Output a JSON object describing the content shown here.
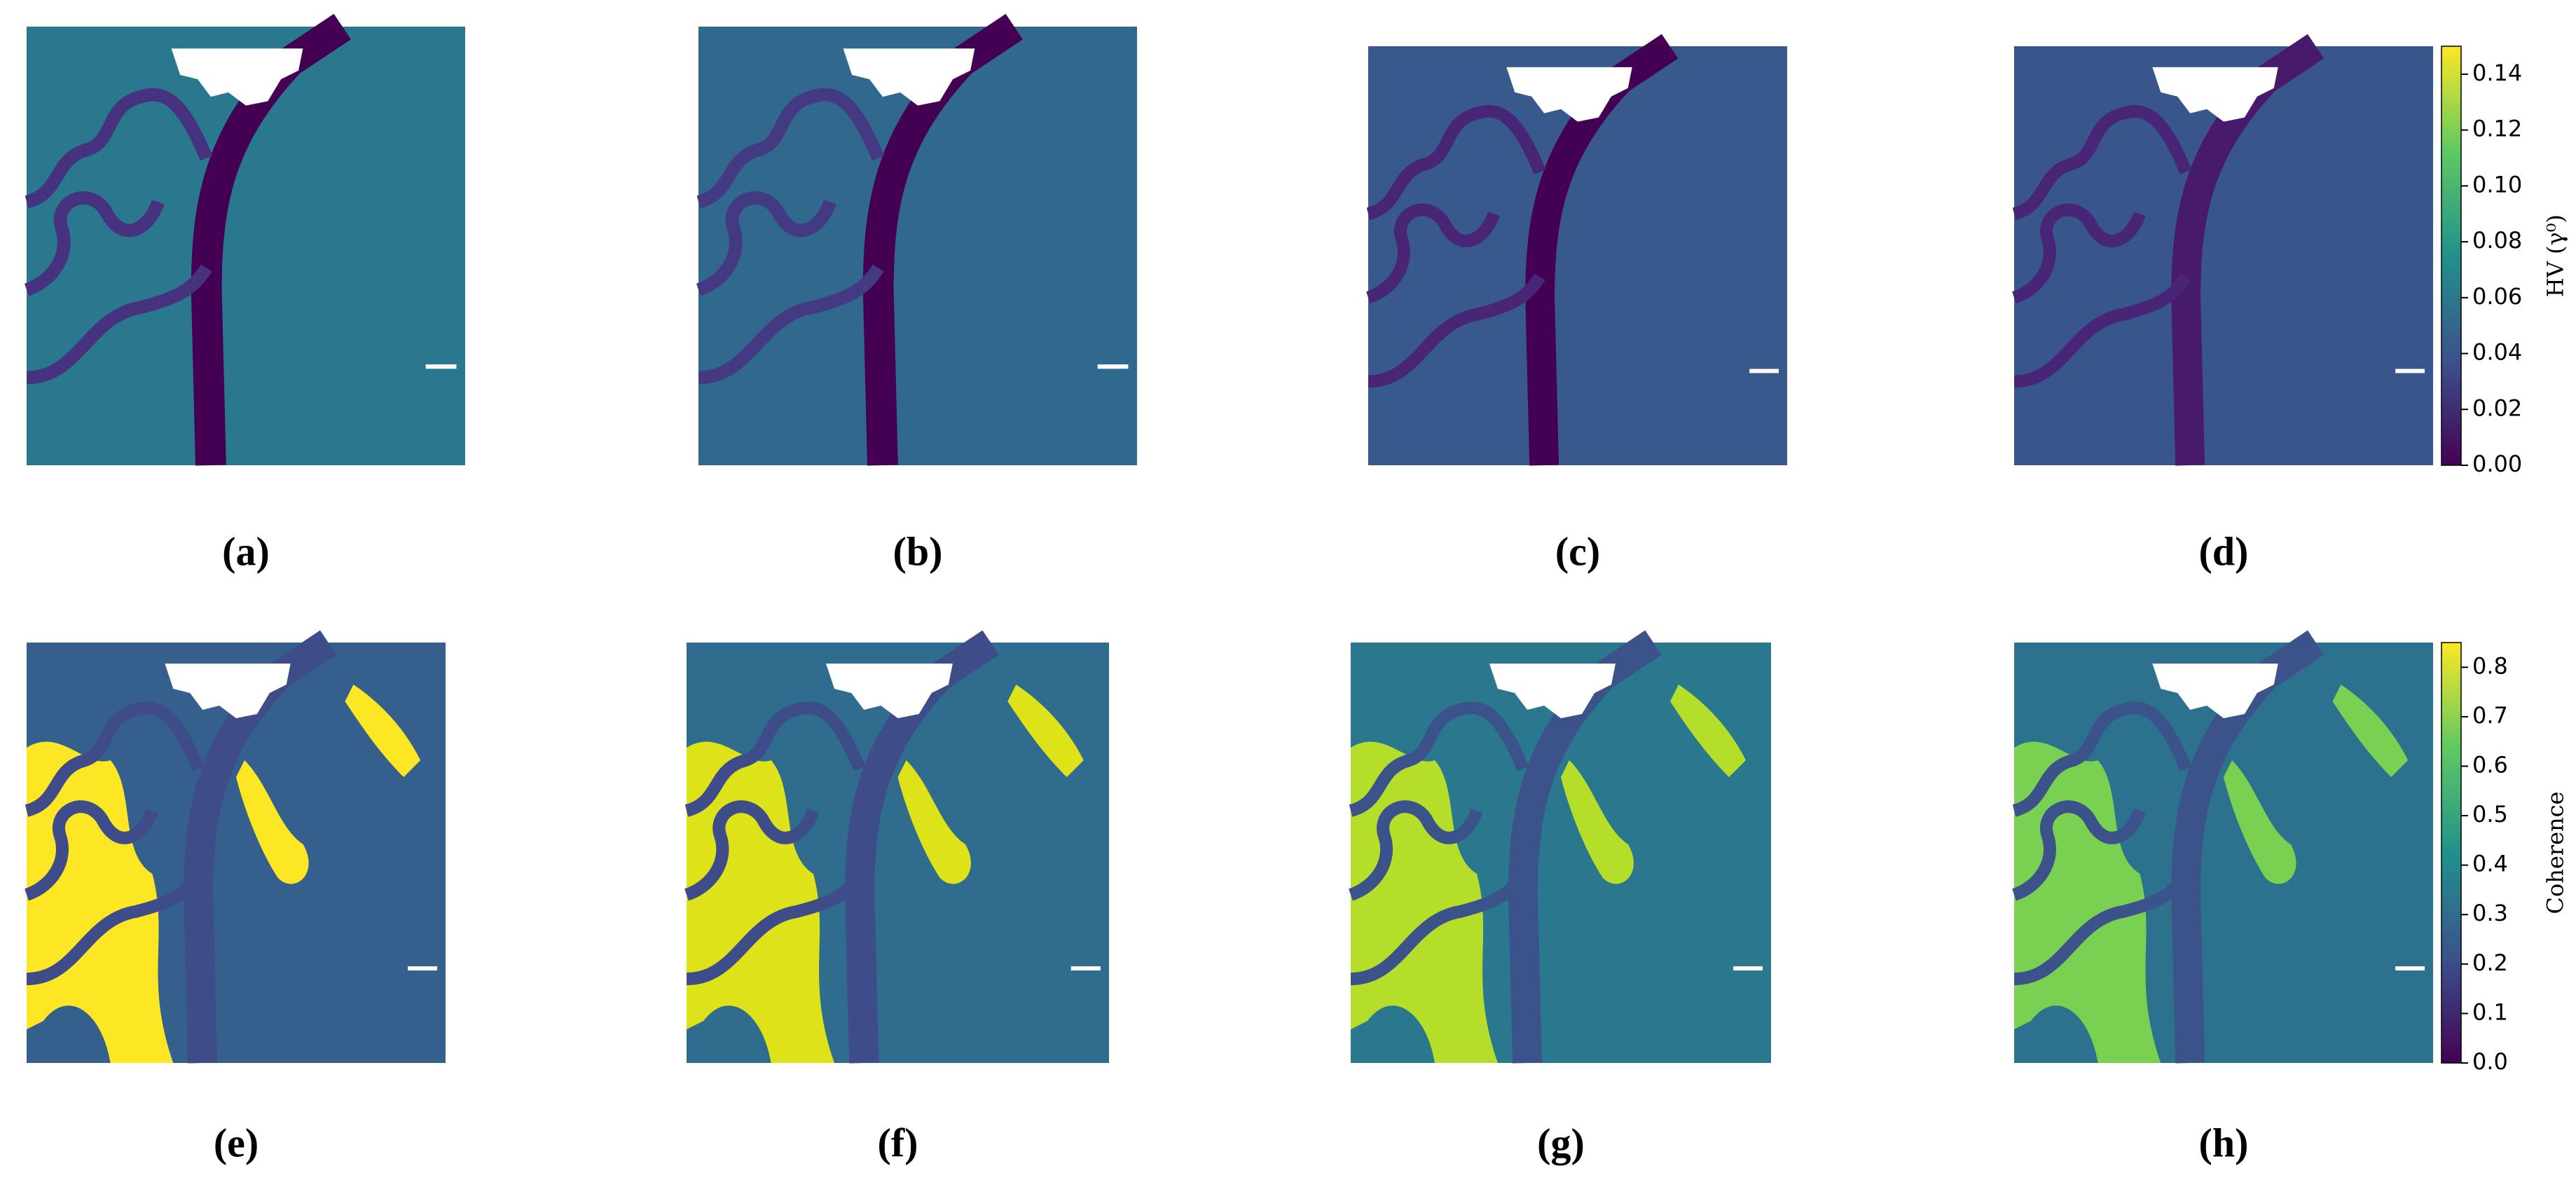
{
  "panels": [
    {
      "label": "(a)"
    },
    {
      "label": "(b)"
    },
    {
      "label": "(c)"
    },
    {
      "label": "(d)"
    },
    {
      "label": "(e)"
    },
    {
      "label": "(f)"
    },
    {
      "label": "(g)"
    },
    {
      "label": "(h)"
    }
  ],
  "colorbars": [
    {
      "label": "HV (γ⁰)",
      "lim": [
        0,
        0.15
      ],
      "ticks": [
        {
          "value": 0,
          "label": "0.00"
        },
        {
          "value": 0.02,
          "label": "0.02"
        },
        {
          "value": 0.04,
          "label": "0.04"
        },
        {
          "value": 0.06,
          "label": "0.06"
        },
        {
          "value": 0.08,
          "label": "0.08"
        },
        {
          "value": 0.1,
          "label": "0.10"
        },
        {
          "value": 0.12,
          "label": "0.12"
        },
        {
          "value": 0.14,
          "label": "0.14"
        }
      ]
    },
    {
      "label": "Coherence",
      "lim": [
        0,
        0.85
      ],
      "ticks": [
        {
          "value": 0,
          "label": "0.0"
        },
        0.1,
        0.2,
        0.3,
        0.4,
        0.5,
        0.6,
        0.7,
        0.8
      ]
    }
  ]
}
